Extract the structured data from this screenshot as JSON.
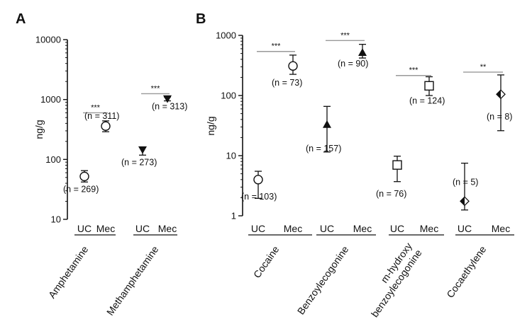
{
  "chart_data": [
    {
      "panel": "A",
      "type": "scatter",
      "ylabel": "ng/g",
      "yscale": "log",
      "ylim": [
        10,
        10000
      ],
      "yticks": [
        "10",
        "100",
        "1000",
        "10000"
      ],
      "categories": [
        "UC",
        "Mec",
        "UC",
        "Mec"
      ],
      "groups": [
        "Amphetamine",
        "Methamphetamine"
      ],
      "points": [
        {
          "category": "UC",
          "group": "Amphetamine",
          "marker": "circle-open",
          "y": 52,
          "err_low": 42,
          "err_high": 65,
          "n_label": "(n = 269)"
        },
        {
          "category": "Mec",
          "group": "Amphetamine",
          "marker": "circle-open",
          "y": 360,
          "err_low": 290,
          "err_high": 440,
          "n_label": "(n = 311)"
        },
        {
          "category": "UC",
          "group": "Methamphetamine",
          "marker": "triangle-down-filled",
          "y": 145,
          "err_low": 118,
          "err_high": 160,
          "n_label": "(n = 273)"
        },
        {
          "category": "Mec",
          "group": "Methamphetamine",
          "marker": "triangle-down-filled",
          "y": 1030,
          "err_low": 950,
          "err_high": 1100,
          "n_label": "(n = 313)"
        }
      ],
      "significance": [
        {
          "between": [
            0,
            1
          ],
          "label": "***",
          "y": 600
        },
        {
          "between": [
            2,
            3
          ],
          "label": "***",
          "y": 1250
        }
      ]
    },
    {
      "panel": "B",
      "type": "scatter",
      "ylabel": "ng/g",
      "yscale": "log",
      "ylim": [
        1,
        1000
      ],
      "yticks": [
        "1",
        "10",
        "100",
        "1000"
      ],
      "categories": [
        "UC",
        "Mec",
        "UC",
        "Mec",
        "UC",
        "Mec",
        "UC",
        "Mec"
      ],
      "groups": [
        "Cocaine",
        "Benzoylecogonine",
        "m-hydroxy benzoylecogonine",
        "Cocaethylene"
      ],
      "group_label_lines": [
        [
          "Cocaine"
        ],
        [
          "Benzoylecogonine"
        ],
        [
          "m-hydroxy",
          "benzoylecogonine"
        ],
        [
          "Cocaethylene"
        ]
      ],
      "points": [
        {
          "category": "UC",
          "group": "Cocaine",
          "marker": "circle-open",
          "y": 4,
          "err_low": 1.95,
          "err_high": 5.5,
          "n_label": "(n = 103)"
        },
        {
          "category": "Mec",
          "group": "Cocaine",
          "marker": "circle-open",
          "y": 310,
          "err_low": 225,
          "err_high": 470,
          "n_label": "(n = 73)"
        },
        {
          "category": "UC",
          "group": "Benzoylecogonine",
          "marker": "triangle-up-filled",
          "y": 33,
          "err_low": 11.5,
          "err_high": 66,
          "n_label": "(n = 157)"
        },
        {
          "category": "Mec",
          "group": "Benzoylecogonine",
          "marker": "triangle-up-filled",
          "y": 520,
          "err_low": 420,
          "err_high": 710,
          "n_label": "(n = 90)"
        },
        {
          "category": "UC",
          "group": "m-hydroxy benzoylecogonine",
          "marker": "square-open",
          "y": 7,
          "err_low": 3.7,
          "err_high": 9.8,
          "n_label": "(n = 76)"
        },
        {
          "category": "Mec",
          "group": "m-hydroxy benzoylecogonine",
          "marker": "square-open",
          "y": 145,
          "err_low": 100,
          "err_high": 205,
          "n_label": "(n = 124)"
        },
        {
          "category": "UC",
          "group": "Cocaethylene",
          "marker": "diamond-half",
          "y": 1.75,
          "err_low": 1.25,
          "err_high": 7.5,
          "n_label": "(n = 5)"
        },
        {
          "category": "Mec",
          "group": "Cocaethylene",
          "marker": "diamond-half",
          "y": 105,
          "err_low": 26,
          "err_high": 220,
          "n_label": "(n = 8)"
        }
      ],
      "significance": [
        {
          "between": [
            0,
            1
          ],
          "label": "***",
          "y": 540
        },
        {
          "between": [
            2,
            3
          ],
          "label": "***",
          "y": 820
        },
        {
          "between": [
            4,
            5
          ],
          "label": "***",
          "y": 215
        },
        {
          "between": [
            6,
            7
          ],
          "label": "**",
          "y": 245
        }
      ]
    }
  ]
}
